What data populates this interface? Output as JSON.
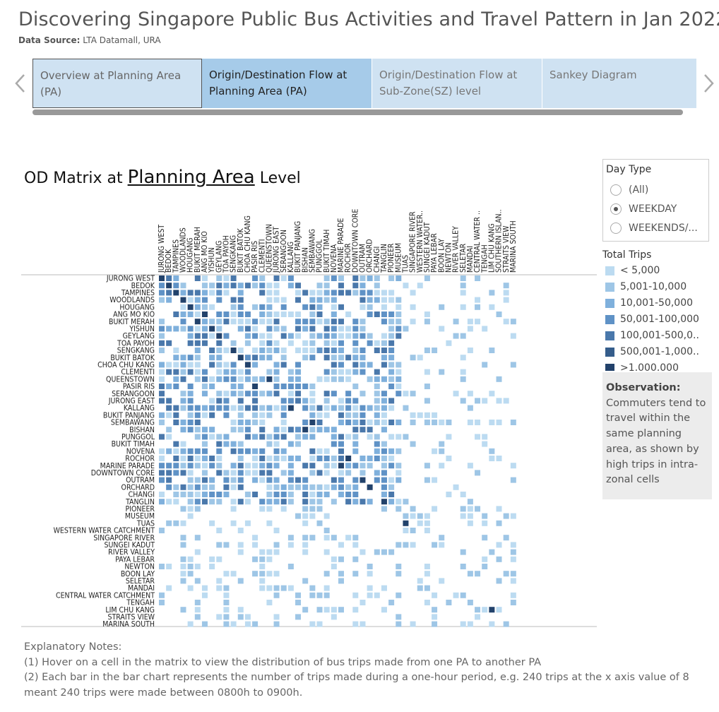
{
  "header": {
    "title": "Discovering Singapore Public Bus Activities and Travel Pattern in Jan 2022",
    "source_label": "Data Source:",
    "source_value": "LTA Datamall, URA"
  },
  "tabs": [
    {
      "line1": "Overview  at Planning Area",
      "line2": "(PA)"
    },
    {
      "line1": "Origin/Destination Flow at",
      "line2": "Planning Area (PA)"
    },
    {
      "line1": "Origin/Destination Flow at",
      "line2": "Sub-Zone(SZ) level"
    },
    {
      "line1": "Sankey Diagram",
      "line2": ""
    }
  ],
  "od": {
    "prefix": "OD Matrix at ",
    "link": "Planning Area",
    "suffix": " Level"
  },
  "filter": {
    "title": "Day Type",
    "options": [
      "(All)",
      "WEEKDAY",
      "WEEKENDS/..."
    ],
    "selected": 1
  },
  "legend": {
    "title": "Total Trips",
    "items": [
      {
        "label": "< 5,000",
        "color": "#bcdbf1"
      },
      {
        "label": "5,001-10,000",
        "color": "#9ec6e6"
      },
      {
        "label": "10,001-50,000",
        "color": "#7fb0dc"
      },
      {
        "label": "50,001-100,000",
        "color": "#5f92c6"
      },
      {
        "label": "100,001-500,0..",
        "color": "#4a78ab"
      },
      {
        "label": "500,001-1,000..",
        "color": "#355d8b"
      },
      {
        "label": ">1,000,000",
        "color": "#22426b"
      }
    ]
  },
  "observation": {
    "heading": "Observation:",
    "text": "Commuters tend to travel within the same planning area, as shown by high trips in intra-zonal cells"
  },
  "notes": {
    "heading": "Explanatory Notes:",
    "line1": "(1) Hover on a cell in the matrix to view the distribution of bus trips made from one PA to another PA",
    "line2": "(2) Each bar in the bar chart represents the number of trips made during a one-hour period, e.g. 240 trips at the x axis value of 8",
    "line3": "meant 240 trips were made between 0800h to 0900h."
  },
  "chart_data": {
    "type": "heatmap",
    "columns": [
      "JURONG WEST",
      "BEDOK",
      "TAMPINES",
      "WOODLANDS",
      "HOUGANG",
      "BUKIT MERAH",
      "ANG MO KIO",
      "YISHUN",
      "GEYLANG",
      "TOA PAYOH",
      "SENGKANG",
      "BUKIT BATOK",
      "CHOA CHU KANG",
      "PASIR RIS",
      "CLEMENTI",
      "QUEENSTOWN",
      "JURONG EAST",
      "SERANGOON",
      "KALLANG",
      "BUKIT PANJANG",
      "BISHAN",
      "SEMBAWANG",
      "PUNGGOL",
      "BUKIT TIMAH",
      "NOVENA",
      "MARINE PARADE",
      "ROCHOR",
      "DOWNTOWN CORE",
      "OUTRAM",
      "ORCHARD",
      "CHANGI",
      "TANGLIN",
      "PIONEER",
      "MUSEUM",
      "TUAS",
      "SINGAPORE RIVER",
      "WESTERN WATER..",
      "SUNGEI KADUT",
      "PAYA LEBAR",
      "BOON LAY",
      "NEWTON",
      "RIVER VALLEY",
      "SELETAR",
      "MANDAI",
      "CENTRAL WATER ..",
      "TENGAH",
      "LIM CHU KANG",
      "SOUTHERN ISLAN..",
      "STRAITS VIEW",
      "MARINA SOUTH"
    ],
    "rows": [
      "JURONG WEST",
      "BEDOK",
      "TAMPINES",
      "WOODLANDS",
      "HOUGANG",
      "ANG MO KIO",
      "BUKIT MERAH",
      "YISHUN",
      "GEYLANG",
      "TOA PAYOH",
      "SENGKANG",
      "BUKIT BATOK",
      "CHOA CHU KANG",
      "CLEMENTI",
      "QUEENSTOWN",
      "PASIR RIS",
      "SERANGOON",
      "JURONG EAST",
      "KALLANG",
      "BUKIT PANJANG",
      "SEMBAWANG",
      "BISHAN",
      "PUNGGOL",
      "BUKIT TIMAH",
      "NOVENA",
      "ROCHOR",
      "MARINE PARADE",
      "DOWNTOWN CORE",
      "OUTRAM",
      "ORCHARD",
      "CHANGI",
      "TANGLIN",
      "PIONEER",
      "MUSEUM",
      "TUAS",
      "WESTERN WATER CATCHMENT",
      "SINGAPORE RIVER",
      "SUNGEI KADUT",
      "RIVER VALLEY",
      "PAYA LEBAR",
      "NEWTON",
      "BOON LAY",
      "SELETAR",
      "MANDAI",
      "CENTRAL WATER CATCHMENT",
      "TENGAH",
      "LIM CHU KANG",
      "STRAITS VIEW",
      "MARINA SOUTH"
    ],
    "category_labels": [
      "< 5,000",
      "5,001-10,000",
      "10,001-50,000",
      "50,001-100,000",
      "100,001-500,000",
      "500,001-1,000,000",
      ">1,000,000"
    ],
    "legend": "right",
    "grid": false
  }
}
